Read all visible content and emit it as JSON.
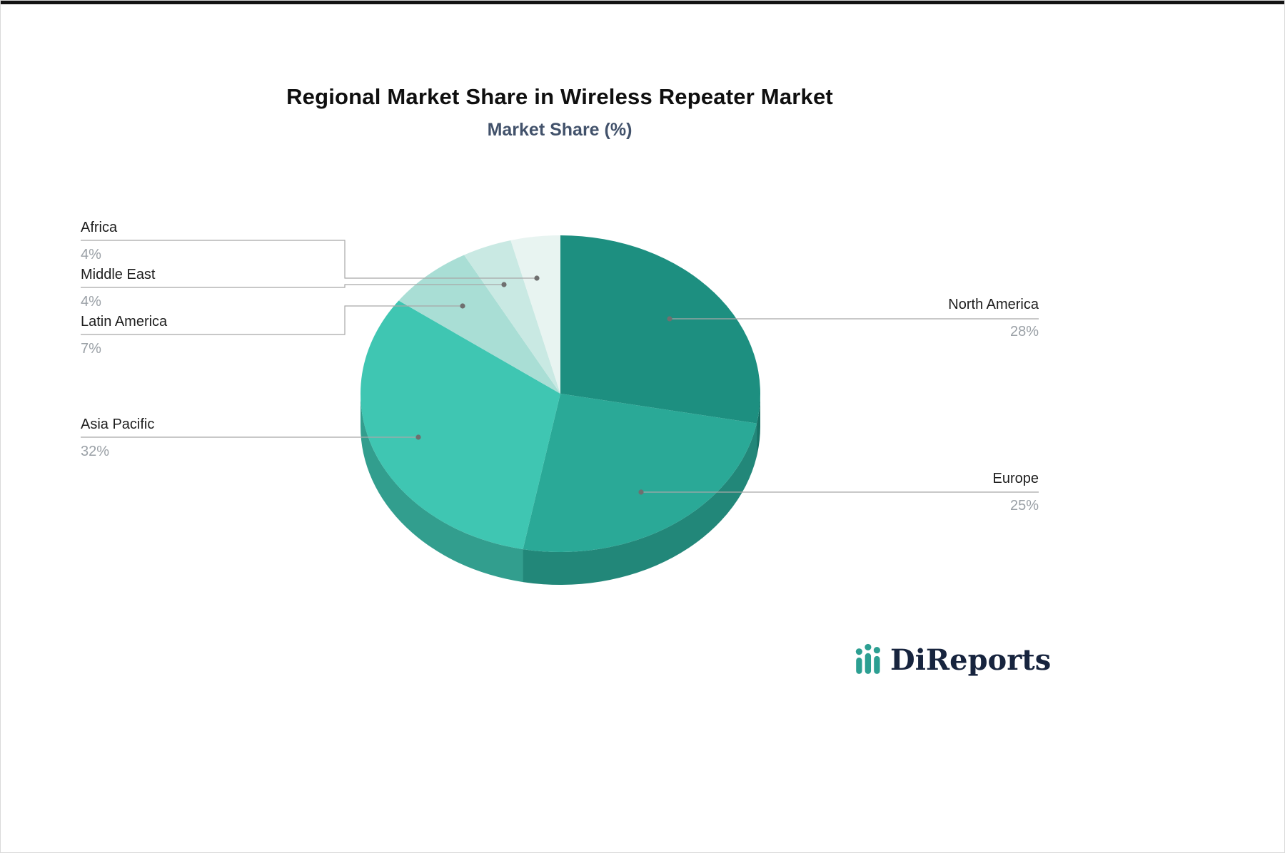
{
  "title": "Regional Market Share in Wireless Repeater Market",
  "subtitle": "Market Share (%)",
  "logo": {
    "text": "DiReports",
    "icon": "bar-chart-logo-icon",
    "accent_color": "#2c9f92",
    "text_color": "#17243e"
  },
  "chart_data": {
    "type": "pie",
    "title": "Regional Market Share in Wireless Repeater Market",
    "subtitle": "Market Share (%)",
    "unit": "%",
    "legend_position": "none",
    "label_style": "callout-lines",
    "slices": [
      {
        "label": "North America",
        "value": 28,
        "value_label": "28%",
        "color": "#1d8f80"
      },
      {
        "label": "Europe",
        "value": 25,
        "value_label": "25%",
        "color": "#2aa997"
      },
      {
        "label": "Asia Pacific",
        "value": 32,
        "value_label": "32%",
        "color": "#3fc6b2"
      },
      {
        "label": "Latin America",
        "value": 7,
        "value_label": "7%",
        "color": "#a9ded5"
      },
      {
        "label": "Middle East",
        "value": 4,
        "value_label": "4%",
        "color": "#c9e9e3"
      },
      {
        "label": "Africa",
        "value": 4,
        "value_label": "4%",
        "color": "#e8f4f1"
      }
    ]
  }
}
